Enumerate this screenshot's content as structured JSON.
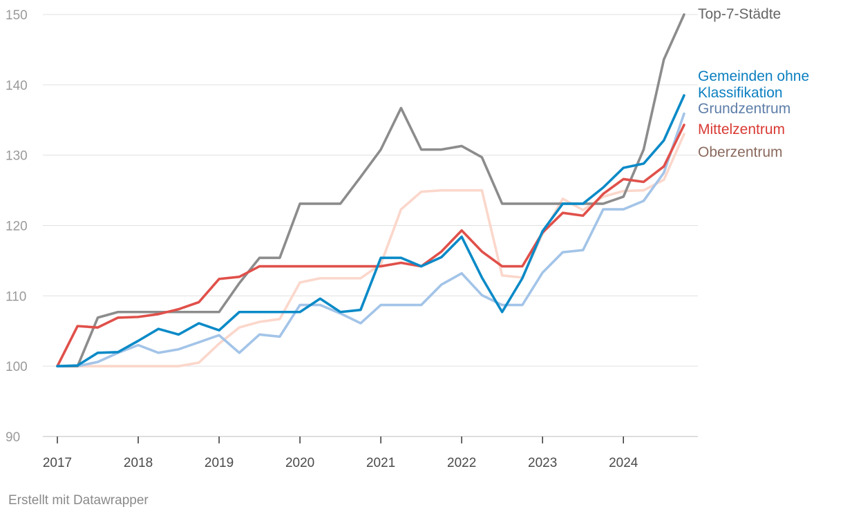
{
  "footer": "Erstellt mit Datawrapper",
  "chart_data": {
    "type": "line",
    "title": "",
    "xlabel": "",
    "ylabel": "",
    "ylim": [
      90,
      150
    ],
    "yticks": [
      90,
      100,
      110,
      120,
      130,
      140,
      150
    ],
    "xlim": [
      2017,
      2024.75
    ],
    "xticks": [
      "2017",
      "2018",
      "2019",
      "2020",
      "2021",
      "2022",
      "2023",
      "2024"
    ],
    "grid": true,
    "legend": "direct labels at right end of lines",
    "x": [
      2017.0,
      2017.25,
      2017.5,
      2017.75,
      2018.0,
      2018.25,
      2018.5,
      2018.75,
      2019.0,
      2019.25,
      2019.5,
      2019.75,
      2020.0,
      2020.25,
      2020.5,
      2020.75,
      2021.0,
      2021.25,
      2021.5,
      2021.75,
      2022.0,
      2022.25,
      2022.5,
      2022.75,
      2023.0,
      2023.25,
      2023.5,
      2023.75,
      2024.0,
      2024.25,
      2024.5,
      2024.75
    ],
    "series": [
      {
        "name": "Oberzentrum",
        "color": "#fbd7cb",
        "label_color": "#8a6a5e",
        "values": [
          100,
          100,
          100,
          100,
          100,
          100,
          100,
          100.5,
          103.2,
          105.5,
          106.3,
          106.7,
          111.9,
          112.5,
          112.5,
          112.5,
          114.5,
          122.3,
          124.8,
          125.0,
          125.0,
          125.0,
          112.9,
          112.6,
          118.8,
          123.8,
          122.2,
          124.1,
          124.9,
          125.0,
          126.5,
          133.0
        ]
      },
      {
        "name": "Grundzentrum",
        "color": "#a3c4e8",
        "label_color": "#5d7ea8",
        "values": [
          100,
          100,
          100.6,
          101.9,
          103.0,
          101.9,
          102.4,
          103.4,
          104.4,
          101.9,
          104.5,
          104.2,
          108.7,
          108.7,
          107.5,
          106.1,
          108.7,
          108.7,
          108.7,
          111.6,
          113.2,
          110.1,
          108.7,
          108.7,
          113.3,
          116.2,
          116.5,
          122.3,
          122.3,
          123.5,
          127.5,
          135.9
        ]
      },
      {
        "name": "Top-7-Städte",
        "color": "#8c8c8c",
        "label_color": "#666666",
        "values": [
          100,
          100,
          106.9,
          107.7,
          107.7,
          107.7,
          107.7,
          107.7,
          107.7,
          111.8,
          115.4,
          115.4,
          123.1,
          123.1,
          123.1,
          126.9,
          130.8,
          136.7,
          130.8,
          130.8,
          131.3,
          129.7,
          123.1,
          123.1,
          123.1,
          123.1,
          123.1,
          123.1,
          124.1,
          130.8,
          143.6,
          150.0
        ]
      },
      {
        "name": "Mittelzentrum",
        "color": "#e0504a",
        "label_color": "#d83a34",
        "values": [
          100,
          105.7,
          105.5,
          106.9,
          107.0,
          107.4,
          108.1,
          109.1,
          112.4,
          112.7,
          114.2,
          114.2,
          114.2,
          114.2,
          114.2,
          114.2,
          114.2,
          114.7,
          114.2,
          116.3,
          119.3,
          116.3,
          114.2,
          114.2,
          119.0,
          121.8,
          121.4,
          124.5,
          126.6,
          126.2,
          128.4,
          134.3
        ]
      },
      {
        "name": "Gemeinden ohne Klassifikation",
        "color": "#0b8ac7",
        "label_color": "#0b7fc0",
        "values": [
          100,
          100.1,
          101.9,
          102.0,
          103.6,
          105.3,
          104.5,
          106.1,
          105.1,
          107.7,
          107.7,
          107.7,
          107.7,
          109.6,
          107.7,
          108.0,
          115.4,
          115.4,
          114.2,
          115.5,
          118.4,
          112.6,
          107.7,
          112.5,
          119.2,
          123.1,
          123.1,
          125.4,
          128.2,
          128.8,
          132.1,
          138.5
        ]
      }
    ]
  },
  "labels": {
    "top7": "Top-7-Städte",
    "gemeinden_line1": "Gemeinden ohne",
    "gemeinden_line2": "Klassifikation",
    "grund": "Grundzentrum",
    "mittel": "Mittelzentrum",
    "ober": "Oberzentrum"
  }
}
